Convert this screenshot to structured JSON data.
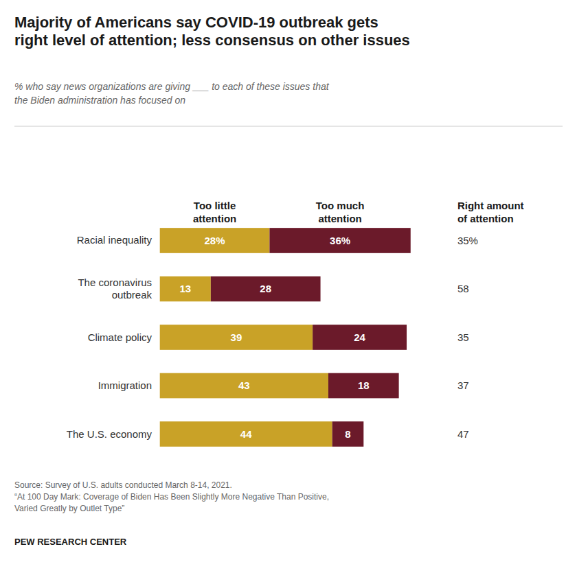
{
  "chart_data": {
    "type": "bar",
    "orientation": "horizontal",
    "stacked": true,
    "data_labels": true,
    "tick_labels": false,
    "grid": false,
    "title": "Majority of Americans say COVID-19 outbreak gets\nright level of attention; less consensus on other issues",
    "subtitle": "% who say news organizations are giving ___ to each of these issues that\nthe Biden administration has focused on",
    "categories": [
      "Racial inequality",
      "The coronavirus\noutbreak",
      "Climate policy",
      "Immigration",
      "The U.S. economy"
    ],
    "xlim": [
      -1,
      80
    ],
    "series": [
      {
        "name": "Too little\nattention",
        "color": "#C9A227",
        "values": [
          28,
          13,
          39,
          43,
          44
        ],
        "value_labels": [
          "28%",
          "13",
          "39",
          "43",
          "44"
        ]
      },
      {
        "name": "Too much\nattention",
        "color": "#6B1A2A",
        "values": [
          36,
          28,
          24,
          18,
          8
        ],
        "value_labels": [
          "36%",
          "28",
          "24",
          "18",
          "8"
        ]
      },
      {
        "name": "Right amount\nof attention",
        "type": "text",
        "color": "#333333",
        "values": [
          35,
          58,
          35,
          37,
          47
        ],
        "value_labels": [
          "35%",
          "58",
          "35",
          "37",
          "47"
        ]
      }
    ],
    "source": "Source: Survey of U.S. adults conducted March 8-14, 2021.\n“At 100 Day Mark: Coverage of Biden Has Been Slightly More Negative Than Positive,\nVaried Greatly by Outlet Type”",
    "footer": "PEW RESEARCH CENTER"
  }
}
